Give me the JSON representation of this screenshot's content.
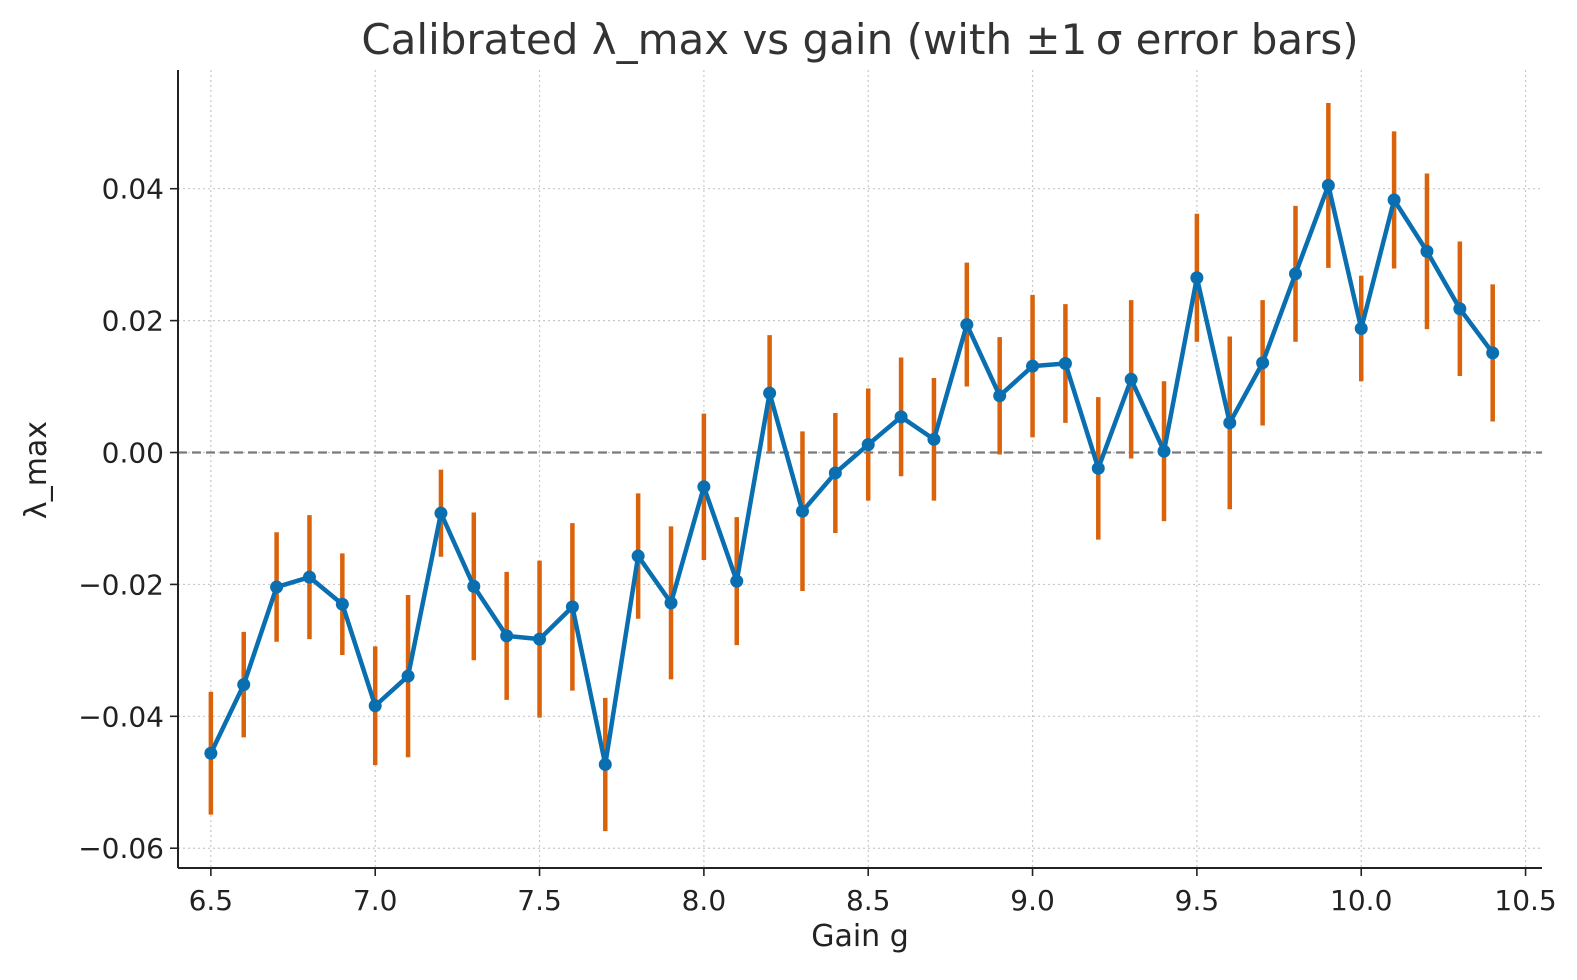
{
  "chart_data": {
    "type": "line",
    "title": "Calibrated λ_max vs gain (with ±1 σ error bars)",
    "xlabel": "Gain g",
    "ylabel": "λ_max",
    "xlim": [
      6.4,
      10.55
    ],
    "ylim": [
      -0.063,
      0.058
    ],
    "x_ticks": [
      6.5,
      7.0,
      7.5,
      8.0,
      8.5,
      9.0,
      9.5,
      10.0,
      10.5
    ],
    "x_tick_labels": [
      "6.5",
      "7.0",
      "7.5",
      "8.0",
      "8.5",
      "9.0",
      "9.5",
      "10.0",
      "10.5"
    ],
    "y_ticks": [
      -0.06,
      -0.04,
      -0.02,
      0.0,
      0.02,
      0.04
    ],
    "y_tick_labels": [
      "−0.06",
      "−0.04",
      "−0.02",
      "0.00",
      "0.02",
      "0.04"
    ],
    "grid": true,
    "reference_line": {
      "y": 0.0,
      "style": "dashed",
      "color": "#7a7a7a"
    },
    "series": [
      {
        "line_color": "#0a6fb0",
        "error_color": "#d9620b",
        "x": [
          6.5,
          6.6,
          6.7,
          6.8,
          6.9,
          7.0,
          7.1,
          7.2,
          7.3,
          7.4,
          7.5,
          7.6,
          7.7,
          7.8,
          7.9,
          8.0,
          8.1,
          8.2,
          8.3,
          8.4,
          8.5,
          8.6,
          8.7,
          8.8,
          8.9,
          9.0,
          9.1,
          9.2,
          9.3,
          9.4,
          9.5,
          9.6,
          9.7,
          9.8,
          9.9,
          10.0,
          10.1,
          10.2,
          10.3,
          10.4
        ],
        "y": [
          -0.0456,
          -0.0352,
          -0.0204,
          -0.0189,
          -0.023,
          -0.0384,
          -0.0339,
          -0.0092,
          -0.0203,
          -0.0278,
          -0.0283,
          -0.0234,
          -0.0473,
          -0.0157,
          -0.0228,
          -0.0052,
          -0.0195,
          0.009,
          -0.0089,
          -0.0031,
          0.0012,
          0.0054,
          0.002,
          0.0194,
          0.0086,
          0.0131,
          0.0135,
          -0.0024,
          0.0111,
          0.0002,
          0.0265,
          0.0045,
          0.0136,
          0.0271,
          0.0405,
          0.0188,
          0.0383,
          0.0305,
          0.0218,
          0.0151
        ],
        "err": [
          0.0093,
          0.008,
          0.0083,
          0.0094,
          0.0077,
          0.009,
          0.0123,
          0.0066,
          0.0112,
          0.0097,
          0.0119,
          0.0127,
          0.0101,
          0.0095,
          0.0116,
          0.0111,
          0.0097,
          0.0088,
          0.0121,
          0.0091,
          0.0085,
          0.009,
          0.0093,
          0.0094,
          0.0089,
          0.0108,
          0.009,
          0.0108,
          0.012,
          0.0106,
          0.0097,
          0.0131,
          0.0095,
          0.0103,
          0.0125,
          0.008,
          0.0104,
          0.0118,
          0.0102,
          0.0104
        ]
      }
    ]
  }
}
